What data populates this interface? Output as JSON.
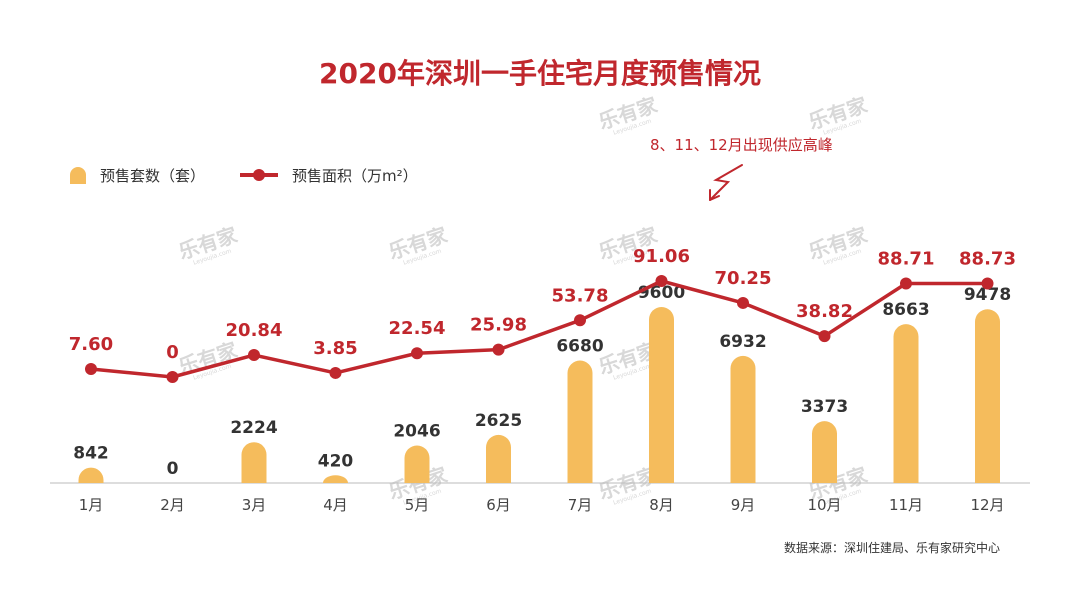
{
  "title": "2020年深圳一手住宅月度预售情况",
  "legend": {
    "bars_label": "预售套数（套）",
    "line_label": "预售面积（万m²）"
  },
  "annotation": "8、11、12月出现供应高峰",
  "source": "数据来源：深圳住建局、乐有家研究中心",
  "watermark": {
    "main": "乐有家",
    "sub": "Leyoujia.com"
  },
  "colors": {
    "bar": "#f5bc5c",
    "line": "#c0272d",
    "title": "#c0272d",
    "axis": "#bbbbbb"
  },
  "chart_data": {
    "type": "bar",
    "title": "2020年深圳一手住宅月度预售情况",
    "categories": [
      "1月",
      "2月",
      "3月",
      "4月",
      "5月",
      "6月",
      "7月",
      "8月",
      "9月",
      "10月",
      "11月",
      "12月"
    ],
    "series": [
      {
        "name": "预售套数（套）",
        "type": "bar",
        "values": [
          842,
          0,
          2224,
          420,
          2046,
          2625,
          6680,
          9600,
          6932,
          3373,
          8663,
          9478
        ],
        "labels": [
          "842",
          "0",
          "2224",
          "420",
          "2046",
          "2625",
          "6680",
          "9600",
          "6932",
          "3373",
          "8663",
          "9478"
        ]
      },
      {
        "name": "预售面积（万m²）",
        "type": "line",
        "values": [
          7.6,
          0,
          20.84,
          3.85,
          22.54,
          25.98,
          53.78,
          91.06,
          70.25,
          38.82,
          88.71,
          88.73
        ],
        "labels": [
          "7.60",
          "0",
          "20.84",
          "3.85",
          "22.54",
          "25.98",
          "53.78",
          "91.06",
          "70.25",
          "38.82",
          "88.71",
          "88.73"
        ]
      }
    ],
    "bar_ylim": [
      0,
      10000
    ],
    "line_ylim": [
      0,
      91.06
    ],
    "grid": false,
    "legend_position": "top-left"
  }
}
